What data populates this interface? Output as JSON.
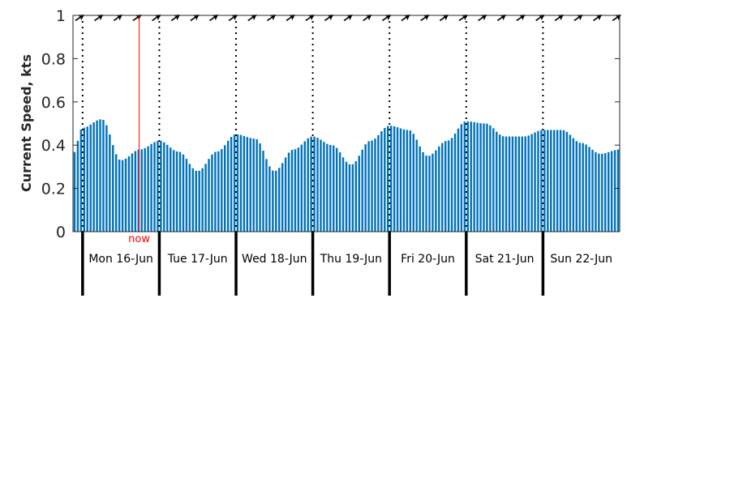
{
  "chart_data": {
    "type": "bar",
    "ylabel": "Current Speed, kts",
    "ylim": [
      0,
      1
    ],
    "yticks": [
      "0",
      "0.2",
      "0.4",
      "0.6",
      "0.8",
      "1"
    ],
    "grid": false,
    "colors": {
      "bars": "#0072BD",
      "now": "#ff0000",
      "axis": "#262626",
      "day_divider": "#000000"
    },
    "x_start_hour": -3,
    "x_end_hour": 168,
    "bar_interval_hours": 1,
    "days": [
      "Mon 16-Jun",
      "Tue 17-Jun",
      "Wed 18-Jun",
      "Thu 19-Jun",
      "Fri 20-Jun",
      "Sat 21-Jun",
      "Sun 22-Jun"
    ],
    "now_hour": 17.7,
    "now_label": "now",
    "direction_arrows": "direction arrows along the top edge of the plot, pointing toward the upper right",
    "speed_profile_hours": [
      -3,
      0,
      6,
      12,
      18,
      24,
      30,
      36,
      42,
      48,
      54,
      60,
      66,
      72,
      78,
      84,
      90,
      96,
      102,
      108,
      114,
      120,
      126,
      132,
      138,
      144,
      150,
      156,
      162,
      168
    ],
    "speed_profile_values": [
      0.36,
      0.48,
      0.52,
      0.33,
      0.38,
      0.42,
      0.37,
      0.28,
      0.37,
      0.45,
      0.43,
      0.28,
      0.38,
      0.44,
      0.4,
      0.31,
      0.42,
      0.49,
      0.47,
      0.35,
      0.42,
      0.51,
      0.5,
      0.44,
      0.44,
      0.47,
      0.47,
      0.41,
      0.36,
      0.38
    ]
  }
}
